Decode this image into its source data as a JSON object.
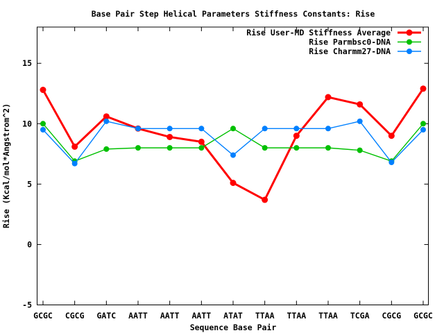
{
  "window": {
    "background": "#ffffff",
    "foreground": "#000000"
  },
  "chart_data": {
    "type": "line",
    "title": "Base Pair Step Helical Parameters Stiffness Constants: Rise",
    "xlabel": "Sequence Base Pair",
    "ylabel": "Rise (Kcal/mol*Angstrom^2)",
    "categories": [
      "GCGC",
      "CGCG",
      "GATC",
      "AATT",
      "AATT",
      "AATT",
      "ATAT",
      "TTAA",
      "TTAA",
      "TTAA",
      "TCGA",
      "CGCG",
      "GCGC"
    ],
    "series": [
      {
        "name": "Rise User-MD Stiffness Average",
        "color": "#ff0000",
        "line_width": 3,
        "marker_radius": 4.5,
        "values": [
          12.8,
          8.1,
          10.6,
          9.6,
          8.9,
          8.5,
          5.1,
          3.7,
          9.0,
          12.2,
          11.6,
          9.0,
          12.9
        ]
      },
      {
        "name": "Rise Parmbsc0-DNA",
        "color": "#00c000",
        "line_width": 1.4,
        "marker_radius": 4,
        "values": [
          10.0,
          6.9,
          7.9,
          8.0,
          8.0,
          8.0,
          9.6,
          8.0,
          8.0,
          8.0,
          7.8,
          6.9,
          10.0
        ]
      },
      {
        "name": "Rise Charmm27-DNA",
        "color": "#0080ff",
        "line_width": 1.4,
        "marker_radius": 4,
        "values": [
          9.5,
          6.7,
          10.2,
          9.6,
          9.6,
          9.6,
          7.4,
          9.6,
          9.6,
          9.6,
          10.2,
          6.8,
          9.5
        ]
      }
    ],
    "ylim": [
      -5,
      18
    ],
    "yticks": [
      -5,
      0,
      5,
      10,
      15
    ],
    "grid": false,
    "legend_position": "top-right-inside"
  }
}
